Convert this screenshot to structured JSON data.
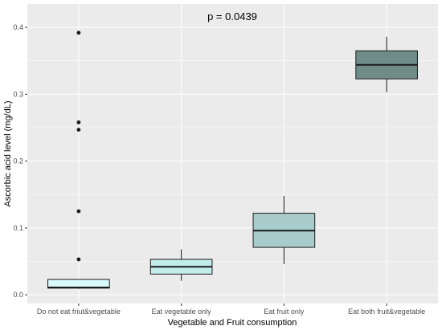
{
  "chart_data": {
    "type": "box",
    "xlabel": "Vegetable and Fruit consumption",
    "ylabel": "Ascorbic acid level (mg/dL)",
    "ylim": [
      -0.013,
      0.435
    ],
    "yticks": [
      0.0,
      0.1,
      0.2,
      0.3,
      0.4
    ],
    "ytick_labels": [
      "0.0",
      "0.1",
      "0.2",
      "0.3",
      "0.4"
    ],
    "categories": [
      "Do not eat friut&vegetable",
      "Eat vegetable only",
      "Eat fruit only",
      "Eat both fruit&vegetable"
    ],
    "boxes": [
      {
        "whisker_low": 0.009,
        "q1": 0.01,
        "median": 0.011,
        "q3": 0.023,
        "whisker_high": 0.023,
        "outliers": [
          0.053,
          0.125,
          0.247,
          0.258,
          0.392
        ],
        "fill": "#d8fafa"
      },
      {
        "whisker_low": 0.021,
        "q1": 0.031,
        "median": 0.042,
        "q3": 0.053,
        "whisker_high": 0.068,
        "outliers": [],
        "fill": "#c2ecea"
      },
      {
        "whisker_low": 0.046,
        "q1": 0.071,
        "median": 0.096,
        "q3": 0.122,
        "whisker_high": 0.148,
        "outliers": [],
        "fill": "#a8cccc"
      },
      {
        "whisker_low": 0.303,
        "q1": 0.323,
        "median": 0.344,
        "q3": 0.365,
        "whisker_high": 0.386,
        "outliers": [],
        "fill": "#6f8c88"
      }
    ],
    "annotation": "p = 0.0439",
    "grid": true,
    "panel_background": "#ebebeb",
    "grid_color": "#ffffff",
    "box_line_color": "#1a1a1a",
    "outlier_color": "#1a1a1a"
  }
}
